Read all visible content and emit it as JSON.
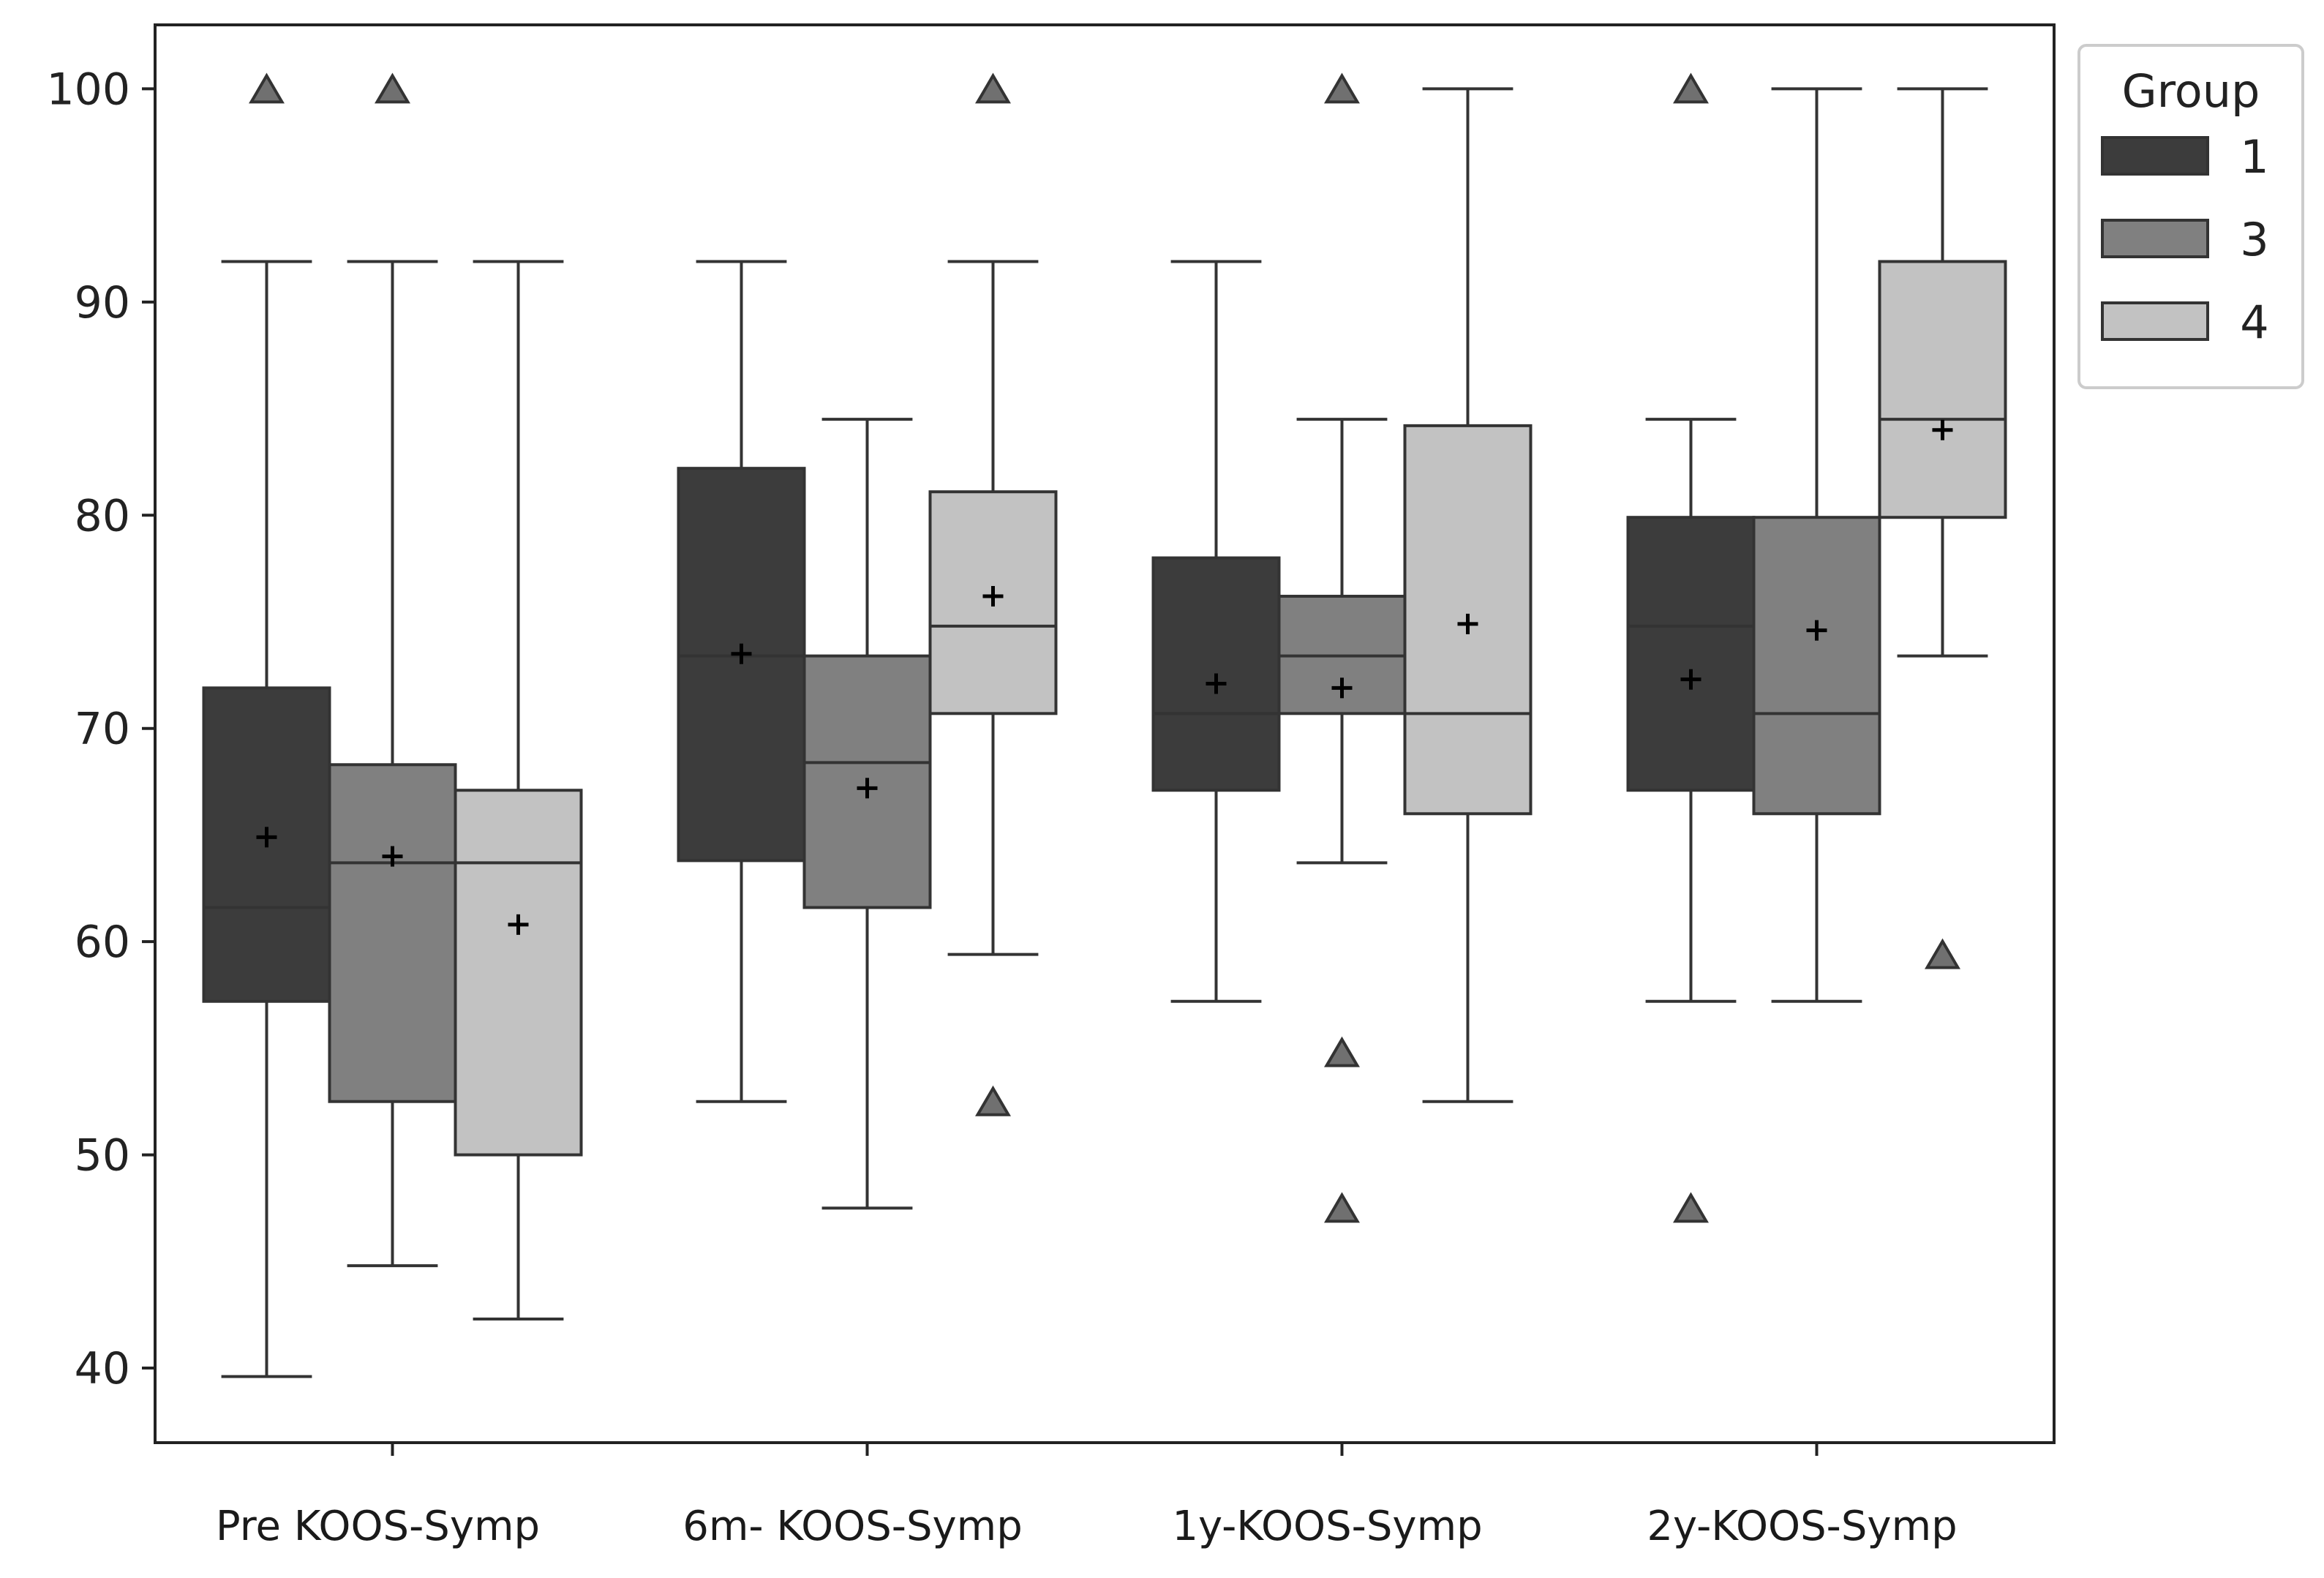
{
  "chart_data": {
    "type": "box",
    "title": "",
    "xlabel": "",
    "ylabel": "",
    "ylim": [
      36.5,
      103
    ],
    "yticks": [
      40,
      50,
      60,
      70,
      80,
      90,
      100
    ],
    "categories": [
      "Pre KOOS-Symp",
      "6m- KOOS-Symp",
      "1y-KOOS-Symp",
      "2y-KOOS-Symp"
    ],
    "legend": {
      "title": "Group",
      "position": "outside-top-right",
      "entries": [
        {
          "label": "1",
          "color": "#3c3c3c"
        },
        {
          "label": "3",
          "color": "#808080"
        },
        {
          "label": "4",
          "color": "#c2c2c2"
        }
      ]
    },
    "series": [
      {
        "name": "1",
        "color": "#3c3c3c",
        "boxes": [
          {
            "whisker_low": 39.6,
            "q1": 57.2,
            "median": 61.6,
            "q3": 71.9,
            "whisker_high": 91.9,
            "mean": 64.9,
            "outliers": [
              100
            ]
          },
          {
            "whisker_low": 52.5,
            "q1": 63.8,
            "median": 73.4,
            "q3": 82.2,
            "whisker_high": 91.9,
            "mean": 73.5,
            "outliers": []
          },
          {
            "whisker_low": 57.2,
            "q1": 67.1,
            "median": 70.7,
            "q3": 78.0,
            "whisker_high": 91.9,
            "mean": 72.1,
            "outliers": []
          },
          {
            "whisker_low": 57.2,
            "q1": 67.1,
            "median": 74.8,
            "q3": 79.9,
            "whisker_high": 84.5,
            "mean": 72.3,
            "outliers": [
              100,
              47.5
            ]
          }
        ]
      },
      {
        "name": "3",
        "color": "#808080",
        "boxes": [
          {
            "whisker_low": 44.8,
            "q1": 52.5,
            "median": 63.7,
            "q3": 68.3,
            "whisker_high": 91.9,
            "mean": 64.0,
            "outliers": [
              100
            ]
          },
          {
            "whisker_low": 47.5,
            "q1": 61.6,
            "median": 68.4,
            "q3": 73.4,
            "whisker_high": 84.5,
            "mean": 67.2,
            "outliers": []
          },
          {
            "whisker_low": 63.7,
            "q1": 70.7,
            "median": 73.4,
            "q3": 76.2,
            "whisker_high": 84.5,
            "mean": 71.9,
            "outliers": [
              100,
              54.8,
              47.5
            ]
          },
          {
            "whisker_low": 57.2,
            "q1": 66.0,
            "median": 70.7,
            "q3": 79.9,
            "whisker_high": 100,
            "mean": 74.6,
            "outliers": []
          }
        ]
      },
      {
        "name": "4",
        "color": "#c2c2c2",
        "boxes": [
          {
            "whisker_low": 42.3,
            "q1": 50.0,
            "median": 63.7,
            "q3": 67.1,
            "whisker_high": 91.9,
            "mean": 60.8,
            "outliers": []
          },
          {
            "whisker_low": 59.4,
            "q1": 70.7,
            "median": 74.8,
            "q3": 81.1,
            "whisker_high": 91.9,
            "mean": 76.2,
            "outliers": [
              100,
              52.5
            ]
          },
          {
            "whisker_low": 52.5,
            "q1": 66.0,
            "median": 70.7,
            "q3": 84.2,
            "whisker_high": 100,
            "mean": 74.9,
            "outliers": []
          },
          {
            "whisker_low": 73.4,
            "q1": 79.9,
            "median": 84.5,
            "q3": 91.9,
            "whisker_high": 100,
            "mean": 84.0,
            "outliers": [
              59.4
            ]
          }
        ]
      }
    ]
  }
}
